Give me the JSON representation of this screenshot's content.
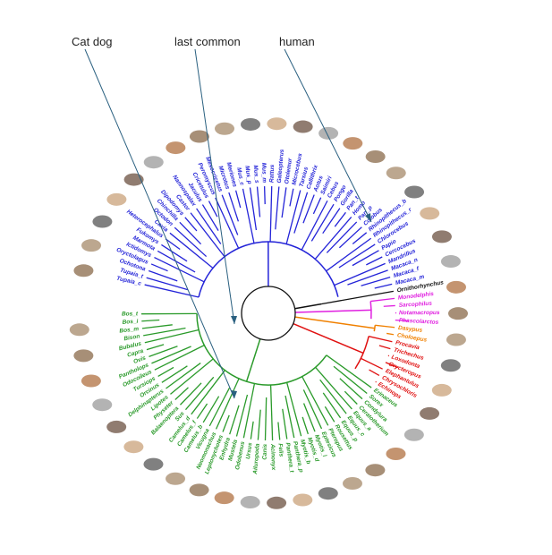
{
  "annotations": [
    "Cat dog",
    "last common",
    "human"
  ],
  "groups": [
    {
      "color": "#2424d8",
      "labels": [
        "Tupaia_c",
        "Tupaia_t",
        "Ochotona",
        "Oryctolagus",
        "Ictidomys",
        "Marmota",
        "Fukomys",
        "Heterocephalus",
        "Cavia",
        "Octodon",
        "Chinchilla",
        "Dipodomys",
        "Castor",
        "Nannospalax",
        "Jaculus",
        "Cricetulus",
        "Peromyscus",
        "Mesocricetus",
        "Microtus",
        "Meriones",
        "Mus_c",
        "Mus_p",
        "Mus_s",
        "Mus_m",
        "Rattus",
        "Galeopterus",
        "Otolemur",
        "Microcebus",
        "Tarsius",
        "Callithrix",
        "Aotus",
        "Saimiri",
        "Cebus",
        "Pongo",
        "Gorilla",
        "Pan_t",
        "Homo",
        "Pan_p",
        "Colobus",
        "Rhinopithecus_b",
        "Rhinopithecus_r",
        "Chlorocebus",
        "Papio",
        "Cercocebus",
        "Mandrillus",
        "Macaca_n",
        "Macaca_f",
        "Macaca_m"
      ]
    },
    {
      "color": "#111111",
      "labels": [
        "Ornithorhynchus"
      ]
    },
    {
      "color": "#e020e0",
      "labels": [
        "Monodelphis",
        "Sarcophilus",
        "Notamacropus",
        "Phascolarctos"
      ]
    },
    {
      "color": "#f08000",
      "labels": [
        "Dasypus",
        "Choloepus"
      ]
    },
    {
      "color": "#e01010",
      "labels": [
        "Procavia",
        "Trichechus",
        "Loxodonta",
        "Orycteropus",
        "Elephantulus",
        "Chrysochloris",
        "Echinops"
      ]
    },
    {
      "color": "#2a9a2a",
      "labels": [
        "Erinaceus",
        "Sorex",
        "Condylura",
        "Ceratotherium",
        "Equus_a",
        "Equus_c",
        "Equus_p",
        "Rousettus",
        "Pteropus",
        "Eptesicus",
        "Myotis_l",
        "Myotis_d",
        "Myotis_b",
        "Panthera_p",
        "Panthera_t",
        "Felis",
        "Acinonyx",
        "Canis",
        "Ailuropoda",
        "Ursus",
        "Odobenus",
        "Mustela",
        "Enhydra",
        "Leptonychotes",
        "Neomonachus",
        "Vicugna",
        "Camelus_b",
        "Camelus_f",
        "Camelus_d",
        "Sus",
        "Balaenoptera",
        "Physeter",
        "Lipotes",
        "Delphinapterus",
        "Orcinus",
        "Tursiops",
        "Odocoileus",
        "Pantholops",
        "Ovis",
        "Capra",
        "Bubalus",
        "Bison",
        "Bos_m",
        "Bos_i",
        "Bos_t"
      ]
    }
  ]
}
